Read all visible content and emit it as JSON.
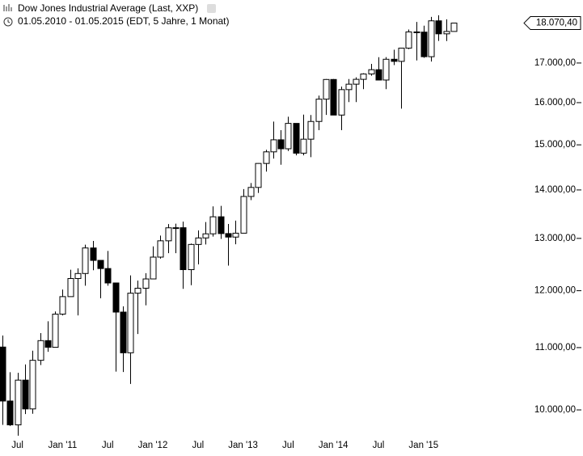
{
  "chart_data": {
    "type": "candlestick",
    "title": "Dow Jones Industrial Average (Last, XXP)",
    "subtitle": "01.05.2010 - 01.05.2015 (EDT, 5 Jahre, 1 Monat)",
    "categories": [
      null,
      null,
      "Jul",
      null,
      null,
      null,
      null,
      null,
      "Jan '11",
      null,
      null,
      null,
      null,
      null,
      "Jul",
      null,
      null,
      null,
      null,
      null,
      "Jan '12",
      null,
      null,
      null,
      null,
      null,
      "Jul",
      null,
      null,
      null,
      null,
      null,
      "Jan '13",
      null,
      null,
      null,
      null,
      null,
      "Jul",
      null,
      null,
      null,
      null,
      null,
      "Jan '14",
      null,
      null,
      null,
      null,
      null,
      "Jul",
      null,
      null,
      null,
      null,
      null,
      "Jan '15",
      null,
      null,
      null,
      null
    ],
    "open": [
      11009,
      10137,
      9774,
      10466,
      10015,
      10788,
      11118,
      11006,
      11578,
      11892,
      12226,
      12320,
      12811,
      12570,
      12414,
      12143,
      11614,
      10913,
      11955,
      12046,
      12218,
      12633,
      12952,
      13212,
      13214,
      12393,
      12880,
      13009,
      13091,
      13437,
      13096,
      13026,
      13104,
      13861,
      14054,
      14579,
      14840,
      15116,
      14910,
      15500,
      14810,
      15130,
      15546,
      16086,
      16577,
      15699,
      16322,
      16458,
      16581,
      16717,
      16827,
      16563,
      17098,
      17043,
      17391,
      17828,
      17823,
      17165,
      18133,
      17776,
      17841
    ],
    "high": [
      11205,
      10594,
      10584,
      10720,
      10948,
      11247,
      11451,
      11625,
      12021,
      12391,
      12419,
      12876,
      12950,
      12570,
      12753,
      12143,
      11716,
      12284,
      12188,
      12327,
      12841,
      13055,
      13289,
      13297,
      13338,
      12898,
      13159,
      13330,
      13653,
      13662,
      13290,
      13358,
      14019,
      14149,
      14585,
      14888,
      15542,
      15340,
      15658,
      15498,
      15709,
      15700,
      16174,
      16588,
      16588,
      16398,
      16589,
      16631,
      16735,
      16978,
      17152,
      17154,
      17350,
      17395,
      17895,
      18103,
      18000,
      18244,
      18289,
      18175,
      18072
    ],
    "low": [
      9774,
      9757,
      9614,
      9936,
      9941,
      10711,
      10929,
      11006,
      11555,
      11892,
      11555,
      12093,
      12381,
      11862,
      12093,
      10604,
      10597,
      10405,
      11231,
      11735,
      12218,
      12603,
      12710,
      12710,
      12035,
      12101,
      12493,
      12880,
      13036,
      12990,
      12471,
      12883,
      13104,
      13784,
      13937,
      14398,
      14688,
      14551,
      14859,
      14760,
      14760,
      14720,
      15340,
      15703,
      15698,
      15340,
      16015,
      16015,
      16334,
      16674,
      16563,
      16333,
      16945,
      15855,
      17365,
      17068,
      17136,
      17037,
      17585,
      17582,
      17840
    ],
    "close": [
      10137,
      9774,
      10466,
      10015,
      10788,
      11118,
      11006,
      11578,
      11892,
      12226,
      12320,
      12811,
      12570,
      12414,
      12143,
      11614,
      10913,
      11955,
      12046,
      12218,
      12633,
      12952,
      13212,
      13214,
      12393,
      12880,
      13009,
      13091,
      13437,
      13096,
      13026,
      13104,
      13861,
      14054,
      14579,
      14840,
      15116,
      14910,
      15500,
      14810,
      15130,
      15546,
      16086,
      16577,
      15699,
      16322,
      16458,
      16581,
      16717,
      16827,
      16563,
      17098,
      17043,
      17391,
      17828,
      17823,
      17165,
      18133,
      17776,
      17841,
      18070.4
    ],
    "up_color": "#ffffff",
    "down_color": "#000000",
    "line_color": "#000000",
    "log_scale": true,
    "ylim": [
      9600,
      18720
    ],
    "yticks": [
      {
        "value": 10000,
        "label": "10.000,00"
      },
      {
        "value": 11000,
        "label": "11.000,00"
      },
      {
        "value": 12000,
        "label": "12.000,00"
      },
      {
        "value": 13000,
        "label": "13.000,00"
      },
      {
        "value": 14000,
        "label": "14.000,00"
      },
      {
        "value": 15000,
        "label": "15.000,00"
      },
      {
        "value": 16000,
        "label": "16.000,00"
      },
      {
        "value": 17000,
        "label": "17.000,00"
      }
    ],
    "last_price": {
      "value": 18070.4,
      "label": "18.070,40"
    }
  }
}
